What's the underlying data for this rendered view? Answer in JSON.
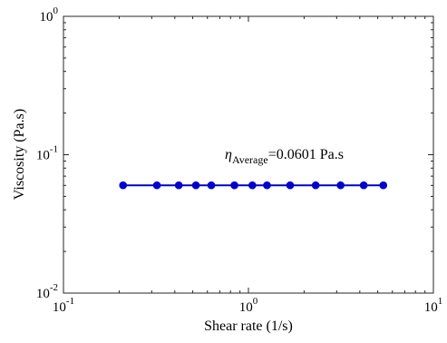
{
  "chart_data": {
    "type": "line",
    "xlabel": "Shear rate (1/s)",
    "ylabel": "Viscosity (Pa.s)",
    "xscale": "log",
    "yscale": "log",
    "xlim": [
      0.1,
      10
    ],
    "ylim": [
      0.01,
      1
    ],
    "grid": false,
    "x_ticks": [
      {
        "base": "10",
        "exp": "-1"
      },
      {
        "base": "10",
        "exp": "0"
      },
      {
        "base": "10",
        "exp": "1"
      }
    ],
    "y_ticks": [
      {
        "base": "10",
        "exp": "-2"
      },
      {
        "base": "10",
        "exp": "-1"
      },
      {
        "base": "10",
        "exp": "0"
      }
    ],
    "series": [
      {
        "color": "#0000cc",
        "marker": "circle",
        "x": [
          0.21,
          0.32,
          0.42,
          0.52,
          0.63,
          0.84,
          1.05,
          1.26,
          1.68,
          2.31,
          3.15,
          4.2,
          5.36
        ],
        "y": [
          0.0601,
          0.0601,
          0.0601,
          0.0601,
          0.0601,
          0.0601,
          0.0601,
          0.0601,
          0.0601,
          0.0601,
          0.0601,
          0.0601,
          0.0601
        ]
      }
    ],
    "annotation": {
      "symbol": "η",
      "subscript": "Average",
      "text": "=0.0601 Pa.s"
    }
  }
}
